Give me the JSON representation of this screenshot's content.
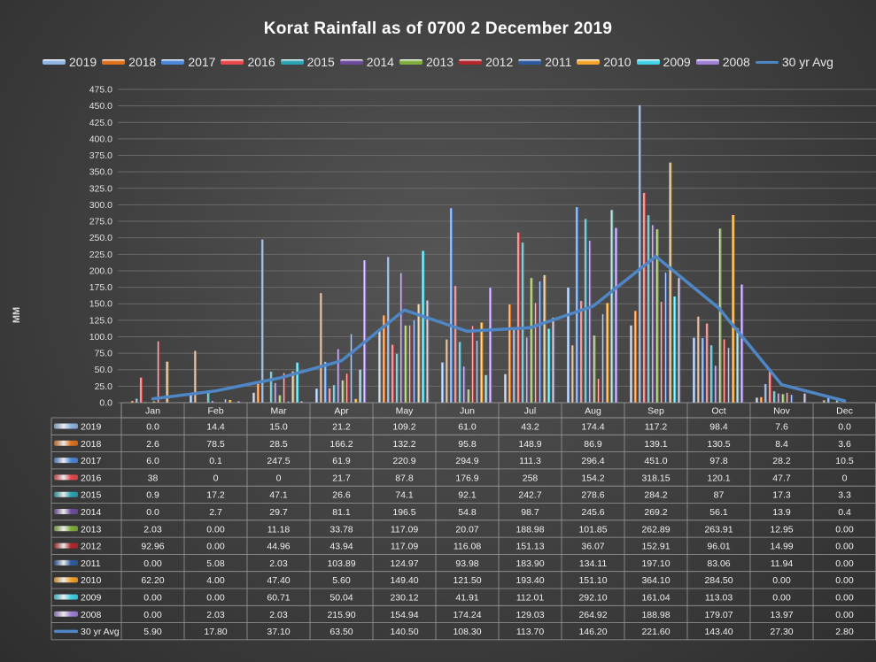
{
  "chart_data": {
    "type": "bar",
    "title": "Korat Rainfall as of 0700 2 December 2019",
    "ylabel": "MM",
    "ylim": [
      0,
      475
    ],
    "ytick_step": 25,
    "grid": true,
    "legend_position": "top",
    "categories": [
      "Jan",
      "Feb",
      "Mar",
      "Apr",
      "May",
      "Jun",
      "Jul",
      "Aug",
      "Sep",
      "Oct",
      "Nov",
      "Dec"
    ],
    "series": [
      {
        "name": "2019",
        "color": "#8fb4e3",
        "values": [
          0.0,
          14.4,
          15.0,
          21.2,
          109.2,
          61.0,
          43.2,
          174.4,
          117.2,
          98.4,
          7.6,
          0.0
        ],
        "labels": [
          "0.0",
          "14.4",
          "15.0",
          "21.2",
          "109.2",
          "61.0",
          "43.2",
          "174.4",
          "117.2",
          "98.4",
          "7.6",
          "0.0"
        ]
      },
      {
        "name": "2018",
        "color": "#e0711a",
        "values": [
          2.6,
          78.5,
          28.5,
          166.2,
          132.2,
          95.8,
          148.9,
          86.9,
          139.1,
          130.5,
          8.4,
          3.6
        ],
        "labels": [
          "2.6",
          "78.5",
          "28.5",
          "166.2",
          "132.2",
          "95.8",
          "148.9",
          "86.9",
          "139.1",
          "130.5",
          "8.4",
          "3.6"
        ]
      },
      {
        "name": "2017",
        "color": "#4a86d9",
        "values": [
          6.0,
          0.1,
          247.5,
          61.9,
          220.9,
          294.9,
          111.3,
          296.4,
          451.0,
          97.8,
          28.2,
          10.5
        ],
        "labels": [
          "6.0",
          "0.1",
          "247.5",
          "61.9",
          "220.9",
          "294.9",
          "111.3",
          "296.4",
          "451.0",
          "97.8",
          "28.2",
          "10.5"
        ]
      },
      {
        "name": "2016",
        "color": "#e8484a",
        "values": [
          38,
          0,
          0,
          21.7,
          87.8,
          176.9,
          258,
          154.2,
          318.15,
          120.1,
          47.7,
          0
        ],
        "labels": [
          "38",
          "0",
          "0",
          "21.7",
          "87.8",
          "176.9",
          "258",
          "154.2",
          "318.15",
          "120.1",
          "47.7",
          "0"
        ]
      },
      {
        "name": "2015",
        "color": "#2aa3b3",
        "values": [
          0.9,
          17.2,
          47.1,
          26.6,
          74.1,
          92.1,
          242.7,
          278.6,
          284.2,
          87,
          17.3,
          3.3
        ],
        "labels": [
          "0.9",
          "17.2",
          "47.1",
          "26.6",
          "74.1",
          "92.1",
          "242.7",
          "278.6",
          "284.2",
          "87",
          "17.3",
          "3.3"
        ]
      },
      {
        "name": "2014",
        "color": "#6e4a9e",
        "values": [
          0.0,
          2.7,
          29.7,
          81.1,
          196.5,
          54.8,
          98.7,
          245.6,
          269.2,
          56.1,
          13.9,
          0.4
        ],
        "labels": [
          "0.0",
          "2.7",
          "29.7",
          "81.1",
          "196.5",
          "54.8",
          "98.7",
          "245.6",
          "269.2",
          "56.1",
          "13.9",
          "0.4"
        ]
      },
      {
        "name": "2013",
        "color": "#7fae3a",
        "values": [
          2.03,
          0.0,
          11.18,
          33.78,
          117.09,
          20.07,
          188.98,
          101.85,
          262.89,
          263.91,
          12.95,
          0.0
        ],
        "labels": [
          "2.03",
          "0.00",
          "11.18",
          "33.78",
          "117.09",
          "20.07",
          "188.98",
          "101.85",
          "262.89",
          "263.91",
          "12.95",
          "0.00"
        ]
      },
      {
        "name": "2012",
        "color": "#b3262a",
        "values": [
          92.96,
          0.0,
          44.96,
          43.94,
          117.09,
          116.08,
          151.13,
          36.07,
          152.91,
          96.01,
          14.99,
          0.0
        ],
        "labels": [
          "92.96",
          "0.00",
          "44.96",
          "43.94",
          "117.09",
          "116.08",
          "151.13",
          "36.07",
          "152.91",
          "96.01",
          "14.99",
          "0.00"
        ]
      },
      {
        "name": "2011",
        "color": "#2d5a9e",
        "values": [
          0.0,
          5.08,
          2.03,
          103.89,
          124.97,
          93.98,
          183.9,
          134.11,
          197.1,
          83.06,
          11.94,
          0.0
        ],
        "labels": [
          "0.00",
          "5.08",
          "2.03",
          "103.89",
          "124.97",
          "93.98",
          "183.90",
          "134.11",
          "197.10",
          "83.06",
          "11.94",
          "0.00"
        ]
      },
      {
        "name": "2010",
        "color": "#f5a32a",
        "values": [
          62.2,
          4.0,
          47.4,
          5.6,
          149.4,
          121.5,
          193.4,
          151.1,
          364.1,
          284.5,
          0.0,
          0.0
        ],
        "labels": [
          "62.20",
          "4.00",
          "47.40",
          "5.60",
          "149.40",
          "121.50",
          "193.40",
          "151.10",
          "364.10",
          "284.50",
          "0.00",
          "0.00"
        ]
      },
      {
        "name": "2009",
        "color": "#3fd2e8",
        "values": [
          0.0,
          0.0,
          60.71,
          50.04,
          230.12,
          41.91,
          112.01,
          292.1,
          161.04,
          113.03,
          0.0,
          0.0
        ],
        "labels": [
          "0.00",
          "0.00",
          "60.71",
          "50.04",
          "230.12",
          "41.91",
          "112.01",
          "292.10",
          "161.04",
          "113.03",
          "0.00",
          "0.00"
        ]
      },
      {
        "name": "2008",
        "color": "#a07fd6",
        "values": [
          0.0,
          2.03,
          2.03,
          215.9,
          154.94,
          174.24,
          129.03,
          264.92,
          188.98,
          179.07,
          13.97,
          0.0
        ],
        "labels": [
          "0.00",
          "2.03",
          "2.03",
          "215.90",
          "154.94",
          "174.24",
          "129.03",
          "264.92",
          "188.98",
          "179.07",
          "13.97",
          "0.00"
        ]
      }
    ],
    "line_series": {
      "name": "30 yr Avg",
      "color": "#4f86c6",
      "values": [
        5.9,
        17.8,
        37.1,
        63.5,
        140.5,
        108.3,
        113.7,
        146.2,
        221.6,
        143.4,
        27.3,
        2.8
      ],
      "labels": [
        "5.90",
        "17.80",
        "37.10",
        "63.50",
        "140.50",
        "108.30",
        "113.70",
        "146.20",
        "221.60",
        "143.40",
        "27.30",
        "2.80"
      ]
    }
  }
}
